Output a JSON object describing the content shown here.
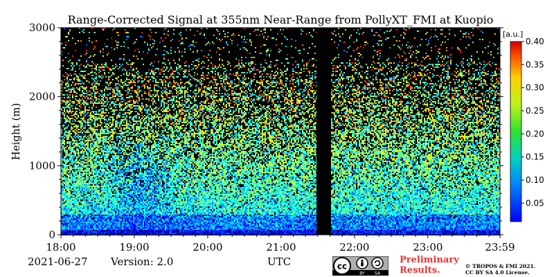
{
  "chart_data": {
    "type": "heatmap",
    "title": "Range-Corrected Signal at 355nm Near-Range from PollyXT_FMI at Kuopio",
    "ylabel": "Height (m)",
    "xlabel": "UTC",
    "ylim": [
      0,
      3000
    ],
    "yticks": [
      0,
      1000,
      2000,
      3000
    ],
    "xlim": [
      "18:00",
      "23:59"
    ],
    "xticks": [
      "18:00",
      "19:00",
      "20:00",
      "21:00",
      "22:00",
      "23:00",
      "23:59"
    ],
    "colorbar": {
      "unit": "[a.u.]",
      "range": [
        0.01,
        0.4
      ],
      "ticks": [
        "0.05",
        "0.10",
        "0.15",
        "0.20",
        "0.25",
        "0.30",
        "0.35",
        "0.40"
      ],
      "colormap": "jet"
    },
    "data_gap": [
      "21:30",
      "21:40"
    ],
    "background_color": "#000000"
  },
  "footer": {
    "date": "2021-06-27",
    "version": "Version: 2.0",
    "time_zone": "UTC",
    "preliminary_line1": "Preliminary",
    "preliminary_line2": "Results.",
    "copyright_line1": "© TROPOS & FMI 2021.",
    "copyright_line2": "CC BY SA 4.0 License.",
    "cc_label": "cc",
    "by_label": "BY",
    "sa_label": "SA"
  },
  "colors": {
    "preliminary": "#ee3333"
  }
}
